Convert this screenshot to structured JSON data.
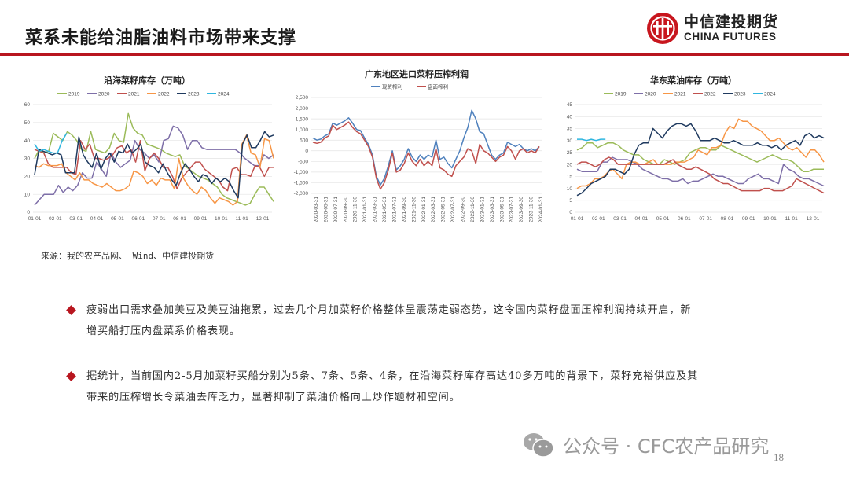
{
  "slide": {
    "title": "菜系未能给油脂油料市场带来支撑",
    "page_number": "18",
    "accent_color": "#b8161f"
  },
  "logo": {
    "name_cn": "中信建投期货",
    "name_en": "CHINA FUTURES",
    "icon": "citic-logo-icon"
  },
  "source": "来源：我的农产品网、 Wind、中信建投期货",
  "bullets": [
    {
      "line1": "疲弱出口需求叠加美豆及美豆油拖累，过去几个月加菜籽价格整体呈震荡走弱态势，这令国内菜籽盘面压榨利润持续开启，新",
      "line2": "增买船打压内盘菜系价格表现。"
    },
    {
      "line1": "据统计，当前国内2-5月加菜籽买船分别为5条、7条、5条、4条，在沿海菜籽库存高达40多万吨的背景下，菜籽充裕供应及其",
      "line2": "带来的压榨增长令菜油去库乏力，显著抑制了菜油价格向上炒作题材和空间。"
    }
  ],
  "watermark": {
    "icon": "wechat-icon",
    "text": "公众号 · CFC农产品研究"
  },
  "chart_data": [
    {
      "type": "line",
      "title": "沿海菜籽库存（万吨）",
      "xlabel": "",
      "ylabel": "",
      "ylim": [
        0,
        60
      ],
      "yticks": [
        0,
        10,
        20,
        30,
        40,
        50,
        60
      ],
      "categories": [
        "01-01",
        "02-01",
        "03-01",
        "04-01",
        "05-01",
        "06-01",
        "07-01",
        "08-01",
        "09-01",
        "10-01",
        "11-01",
        "12-01"
      ],
      "grid": true,
      "legend_position": "top",
      "x_points": 48,
      "series": [
        {
          "name": "2019",
          "color": "#9bbb59",
          "values": [
            30,
            35,
            33,
            34,
            44,
            42,
            40,
            45,
            43,
            40,
            35,
            34,
            45,
            35,
            34,
            33,
            36,
            44,
            40,
            39,
            55,
            47,
            44,
            43,
            38,
            37,
            36,
            35,
            33,
            32,
            31,
            32,
            26,
            24,
            22,
            20,
            19,
            18,
            16,
            14,
            10,
            8,
            7,
            6,
            5,
            4,
            5,
            10,
            14,
            14,
            10,
            6
          ]
        },
        {
          "name": "2020",
          "color": "#7e6fa8",
          "values": [
            4,
            7,
            10,
            10,
            10,
            15,
            11,
            14,
            12,
            15,
            22,
            19,
            19,
            28,
            24,
            20,
            33,
            28,
            25,
            27,
            29,
            40,
            35,
            33,
            30,
            32,
            28,
            40,
            41,
            48,
            47,
            43,
            35,
            40,
            40,
            36,
            35,
            35,
            35,
            35,
            35,
            35,
            35,
            33,
            30,
            28,
            26,
            26,
            32,
            30,
            32
          ]
        },
        {
          "name": "2021",
          "color": "#c0504d",
          "values": [
            35,
            34,
            33,
            27,
            25,
            25,
            25,
            25,
            22,
            21,
            40,
            35,
            38,
            30,
            30,
            29,
            30,
            32,
            36,
            37,
            33,
            35,
            28,
            40,
            23,
            30,
            33,
            30,
            25,
            25,
            20,
            13,
            19,
            22,
            25,
            28,
            28,
            24,
            22,
            20,
            18,
            14,
            12,
            24,
            25,
            21,
            21,
            20,
            26,
            25,
            20,
            25,
            25
          ]
        },
        {
          "name": "2022",
          "color": "#f79646",
          "values": [
            26,
            25,
            27,
            26,
            26,
            26,
            27,
            22,
            20,
            18,
            22,
            18,
            18,
            16,
            15,
            14,
            16,
            14,
            12,
            12,
            13,
            15,
            23,
            22,
            20,
            16,
            18,
            15,
            19,
            18,
            18,
            13,
            30,
            19,
            15,
            12,
            10,
            14,
            12,
            8,
            5,
            8,
            7,
            6,
            4,
            6,
            38,
            43,
            33,
            32,
            25,
            41,
            40,
            30
          ]
        },
        {
          "name": "2023",
          "color": "#1f3a5f",
          "values": [
            21,
            35,
            34,
            33,
            32,
            33,
            32,
            22,
            22,
            22,
            42,
            32,
            28,
            25,
            33,
            24,
            30,
            33,
            28,
            34,
            33,
            38,
            33,
            35,
            38,
            28,
            26,
            25,
            22,
            27,
            22,
            18,
            15,
            22,
            27,
            24,
            20,
            17,
            21,
            20,
            16,
            19,
            17,
            19,
            17,
            12,
            8,
            38,
            43,
            36,
            36,
            40,
            45,
            42,
            43
          ]
        },
        {
          "name": "2024",
          "color": "#2fb6e0",
          "values": [
            38,
            34,
            35,
            34,
            33,
            33,
            40,
            44
          ]
        }
      ]
    },
    {
      "type": "line",
      "title": "广东地区进口菜籽压榨利润",
      "xlabel": "",
      "ylabel": "",
      "ylim": [
        -2000,
        2500
      ],
      "yticks": [
        -2000,
        -1500,
        -1000,
        -500,
        0,
        500,
        1000,
        1500,
        2000,
        2500
      ],
      "ytick_labels": [
        "-2,000",
        "-1,500",
        "-1,000",
        "-500",
        "0",
        "500",
        "1,000",
        "1,500",
        "2,000",
        "2,500"
      ],
      "categories": [
        "2020-03-31",
        "2020-05-31",
        "2020-07-31",
        "2020-09-30",
        "2020-11-30",
        "2021-01-31",
        "2021-03-31",
        "2021-05-31",
        "2021-07-31",
        "2021-09-30",
        "2021-11-30",
        "2022-01-31",
        "2022-03-31",
        "2022-05-31",
        "2022-07-31",
        "2022-09-30",
        "2022-11-30",
        "2023-01-31",
        "2023-03-31",
        "2023-05-31",
        "2023-07-31",
        "2023-09-30",
        "2023-11-30",
        "2024-01-31"
      ],
      "grid": true,
      "legend_position": "top",
      "series": [
        {
          "name": "现货榨利",
          "color": "#4f81bd",
          "values": [
            600,
            500,
            550,
            700,
            800,
            1300,
            1200,
            1300,
            1400,
            1550,
            1300,
            1000,
            950,
            600,
            300,
            -200,
            -1200,
            -1600,
            -1300,
            -700,
            0,
            -900,
            -700,
            -400,
            100,
            -300,
            -500,
            -200,
            -400,
            -200,
            -300,
            500,
            -400,
            -300,
            -600,
            -800,
            -400,
            0,
            600,
            1100,
            1900,
            1500,
            900,
            800,
            300,
            -200,
            -400,
            -200,
            -100,
            400,
            300,
            200,
            300,
            100,
            0,
            100,
            0,
            200
          ]
        },
        {
          "name": "盘面榨利",
          "color": "#c0504d",
          "values": [
            400,
            350,
            400,
            600,
            700,
            1200,
            1000,
            1100,
            1200,
            1350,
            1100,
            900,
            800,
            500,
            200,
            -300,
            -1300,
            -1800,
            -1500,
            -900,
            -100,
            -1000,
            -900,
            -600,
            -100,
            -500,
            -700,
            -400,
            -700,
            -500,
            -700,
            100,
            -800,
            -900,
            -1100,
            -1200,
            -700,
            -500,
            -300,
            100,
            0,
            -600,
            300,
            0,
            -100,
            -300,
            -500,
            -300,
            -200,
            200,
            0,
            -400,
            0,
            100,
            -100,
            0,
            -100,
            200
          ]
        }
      ]
    },
    {
      "type": "line",
      "title": "华东菜油库存（万吨）",
      "xlabel": "",
      "ylabel": "",
      "ylim": [
        0,
        45
      ],
      "yticks": [
        0,
        5,
        10,
        15,
        20,
        25,
        30,
        35,
        40,
        45
      ],
      "categories": [
        "01-01",
        "02-01",
        "03-01",
        "04-01",
        "05-01",
        "06-01",
        "07-01",
        "08-01",
        "09-01",
        "10-01",
        "11-01",
        "12-01"
      ],
      "grid": true,
      "legend_position": "top",
      "series": [
        {
          "name": "2019",
          "color": "#9bbb59",
          "values": [
            26,
            27,
            29,
            29,
            27,
            28,
            29,
            29,
            28,
            26,
            25,
            24,
            24,
            22,
            21,
            20,
            20,
            22,
            21,
            20,
            21,
            22,
            25,
            26,
            27,
            27,
            26,
            26,
            28,
            27,
            26,
            25,
            24,
            23,
            22,
            21,
            22,
            23,
            24,
            23,
            22,
            22,
            21,
            19,
            17,
            17,
            18,
            18,
            18
          ]
        },
        {
          "name": "2020",
          "color": "#7e6fa8",
          "values": [
            18,
            17,
            17,
            17,
            17,
            21,
            21,
            23,
            22,
            22,
            22,
            21,
            20,
            18,
            17,
            16,
            15,
            14,
            14,
            13,
            13,
            14,
            12,
            13,
            13,
            14,
            15,
            16,
            15,
            15,
            14,
            13,
            12,
            12,
            14,
            15,
            16,
            14,
            14,
            13,
            12,
            20,
            18,
            17,
            15,
            14,
            14,
            13,
            12,
            11
          ]
        },
        {
          "name": "2021",
          "color": "#f79646",
          "values": [
            10,
            11,
            11,
            12,
            14,
            14,
            15,
            17,
            18,
            16,
            14,
            20,
            21,
            21,
            20,
            20,
            21,
            22,
            20,
            20,
            20,
            20,
            21,
            21,
            21,
            22,
            23,
            26,
            25,
            24,
            27,
            27,
            28,
            33,
            36,
            35,
            39,
            38,
            38,
            36,
            35,
            34,
            32,
            30,
            30,
            31,
            29,
            27,
            26,
            27,
            25,
            23,
            26,
            26,
            24,
            21
          ]
        },
        {
          "name": "2022",
          "color": "#c0504d",
          "values": [
            20,
            21,
            21,
            20,
            19,
            20,
            22,
            23,
            22,
            20,
            20,
            20,
            20,
            20,
            20,
            20,
            20,
            20,
            20,
            20,
            21,
            22,
            20,
            19,
            18,
            18,
            19,
            18,
            17,
            16,
            14,
            13,
            12,
            12,
            11,
            10,
            9,
            9,
            9,
            9,
            9,
            10,
            10,
            9,
            9,
            9,
            10,
            11,
            14,
            13,
            12,
            11,
            10,
            9,
            8
          ]
        },
        {
          "name": "2023",
          "color": "#1f3a5f",
          "values": [
            7,
            8,
            10,
            12,
            13,
            14,
            15,
            18,
            18,
            17,
            16,
            18,
            24,
            28,
            29,
            29,
            35,
            33,
            31,
            34,
            36,
            37,
            37,
            36,
            37,
            34,
            30,
            30,
            30,
            31,
            30,
            29,
            29,
            30,
            29,
            28,
            28,
            28,
            29,
            28,
            28,
            27,
            28,
            26,
            28,
            29,
            30,
            28,
            32,
            33,
            31,
            32,
            31
          ]
        },
        {
          "name": "2024",
          "color": "#2fb6e0",
          "values": [
            30.5,
            30.5,
            30,
            30.5,
            30,
            30.5,
            30.5
          ]
        }
      ]
    }
  ]
}
